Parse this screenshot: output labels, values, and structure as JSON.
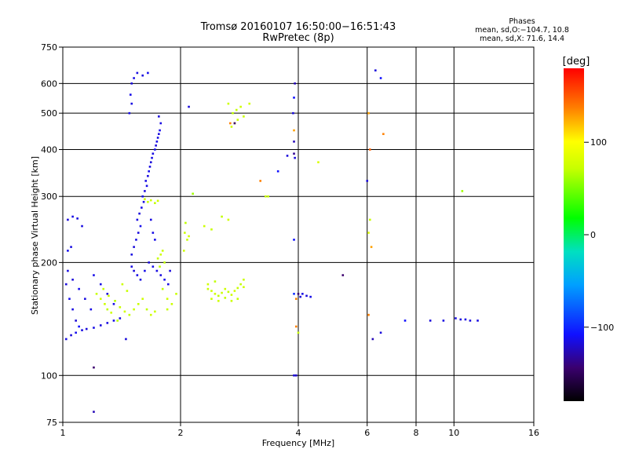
{
  "figure": {
    "title": "Tromsø 20160107 16:50:00−16:51:43",
    "subtitle": "RwPretec (8p)",
    "phase_title": "Phases",
    "phase_o": "mean, sd,O:−104.7, 10.8",
    "phase_x": "mean, sd,X:  71.6, 14.4",
    "colorbar_title": "[deg]",
    "colorbar_ticks": [
      "100",
      "0",
      "−100"
    ],
    "colorbar_tick_values": [
      100,
      0,
      -100
    ],
    "colorbar_range": [
      -180,
      180
    ]
  },
  "chart_data": {
    "type": "scatter",
    "xlabel": "Frequency [MHz]",
    "ylabel": "Stationary phase Virtual Height [km]",
    "x_scale": "log",
    "y_scale": "log",
    "xlim": [
      1,
      16
    ],
    "ylim": [
      75,
      750
    ],
    "x_ticks": [
      1,
      2,
      4,
      6,
      8,
      10,
      16
    ],
    "x_tick_labels": [
      "1",
      "2",
      "4",
      "6",
      "8",
      "10",
      "16"
    ],
    "y_ticks": [
      75,
      100,
      200,
      300,
      400,
      500,
      600,
      750
    ],
    "y_tick_labels": [
      "75",
      "100",
      "200",
      "300",
      "400",
      "500",
      "600",
      "750"
    ],
    "grid": true,
    "color_encoding": "phase [deg]",
    "points": [
      [
        1.02,
        175,
        -120
      ],
      [
        1.04,
        160,
        -115
      ],
      [
        1.06,
        150,
        -118
      ],
      [
        1.08,
        140,
        -122
      ],
      [
        1.1,
        135,
        -110
      ],
      [
        1.02,
        125,
        -118
      ],
      [
        1.05,
        128,
        -120
      ],
      [
        1.08,
        130,
        -115
      ],
      [
        1.12,
        132,
        -118
      ],
      [
        1.15,
        133,
        -120
      ],
      [
        1.2,
        134,
        -117
      ],
      [
        1.25,
        136,
        -119
      ],
      [
        1.3,
        138,
        -118
      ],
      [
        1.35,
        140,
        -116
      ],
      [
        1.4,
        142,
        -118
      ],
      [
        1.03,
        190,
        -118
      ],
      [
        1.06,
        180,
        -120
      ],
      [
        1.1,
        170,
        -115
      ],
      [
        1.14,
        160,
        -118
      ],
      [
        1.18,
        150,
        -117
      ],
      [
        1.03,
        215,
        -115
      ],
      [
        1.05,
        220,
        -118
      ],
      [
        1.03,
        260,
        -120
      ],
      [
        1.06,
        265,
        -117
      ],
      [
        1.09,
        262,
        -119
      ],
      [
        1.12,
        250,
        -118
      ],
      [
        1.2,
        185,
        -116
      ],
      [
        1.25,
        175,
        -118
      ],
      [
        1.3,
        165,
        -120
      ],
      [
        1.35,
        155,
        -117
      ],
      [
        1.22,
        165,
        70
      ],
      [
        1.25,
        160,
        75
      ],
      [
        1.28,
        155,
        72
      ],
      [
        1.3,
        150,
        68
      ],
      [
        1.33,
        147,
        74
      ],
      [
        1.27,
        170,
        70
      ],
      [
        1.31,
        163,
        73
      ],
      [
        1.36,
        158,
        66
      ],
      [
        1.4,
        152,
        71
      ],
      [
        1.44,
        148,
        75
      ],
      [
        1.48,
        145,
        69
      ],
      [
        1.52,
        150,
        72
      ],
      [
        1.56,
        155,
        70
      ],
      [
        1.6,
        160,
        73
      ],
      [
        1.64,
        150,
        68
      ],
      [
        1.68,
        145,
        74
      ],
      [
        1.72,
        148,
        71
      ],
      [
        1.42,
        175,
        72
      ],
      [
        1.46,
        168,
        70
      ],
      [
        1.38,
        140,
        66
      ],
      [
        1.5,
        210,
        -118
      ],
      [
        1.52,
        220,
        -120
      ],
      [
        1.54,
        230,
        -117
      ],
      [
        1.56,
        240,
        -119
      ],
      [
        1.58,
        250,
        -115
      ],
      [
        1.55,
        260,
        -118
      ],
      [
        1.57,
        270,
        -120
      ],
      [
        1.59,
        280,
        -117
      ],
      [
        1.61,
        290,
        -118
      ],
      [
        1.6,
        300,
        -116
      ],
      [
        1.62,
        310,
        -120
      ],
      [
        1.64,
        320,
        -117
      ],
      [
        1.63,
        330,
        -118
      ],
      [
        1.65,
        340,
        -119
      ],
      [
        1.66,
        350,
        -115
      ],
      [
        1.67,
        360,
        -118
      ],
      [
        1.68,
        370,
        -120
      ],
      [
        1.69,
        380,
        -117
      ],
      [
        1.7,
        390,
        -118
      ],
      [
        1.72,
        400,
        -116
      ],
      [
        1.73,
        410,
        -120
      ],
      [
        1.74,
        420,
        -117
      ],
      [
        1.75,
        430,
        -118
      ],
      [
        1.76,
        440,
        -119
      ],
      [
        1.77,
        450,
        -115
      ],
      [
        1.78,
        470,
        -118
      ],
      [
        1.76,
        490,
        -120
      ],
      [
        1.48,
        500,
        -117
      ],
      [
        1.5,
        530,
        -118
      ],
      [
        1.49,
        560,
        -116
      ],
      [
        1.5,
        600,
        -120
      ],
      [
        1.52,
        620,
        -117
      ],
      [
        1.55,
        640,
        -118
      ],
      [
        1.6,
        630,
        -119
      ],
      [
        1.65,
        640,
        -115
      ],
      [
        1.5,
        195,
        -118
      ],
      [
        1.52,
        190,
        -120
      ],
      [
        1.55,
        185,
        -117
      ],
      [
        1.58,
        180,
        -118
      ],
      [
        1.62,
        190,
        -116
      ],
      [
        1.66,
        200,
        -120
      ],
      [
        1.7,
        195,
        -117
      ],
      [
        1.74,
        190,
        -118
      ],
      [
        1.78,
        185,
        -119
      ],
      [
        1.82,
        180,
        -115
      ],
      [
        1.86,
        175,
        -118
      ],
      [
        1.88,
        190,
        -120
      ],
      [
        1.7,
        240,
        -117
      ],
      [
        1.68,
        260,
        -118
      ],
      [
        1.72,
        230,
        -116
      ],
      [
        1.65,
        290,
        70
      ],
      [
        1.68,
        293,
        74
      ],
      [
        1.72,
        288,
        68
      ],
      [
        1.75,
        292,
        72
      ],
      [
        1.62,
        295,
        75
      ],
      [
        1.75,
        205,
        70
      ],
      [
        1.78,
        210,
        73
      ],
      [
        1.82,
        200,
        68
      ],
      [
        1.8,
        215,
        72
      ],
      [
        1.77,
        195,
        69
      ],
      [
        1.85,
        150,
        70
      ],
      [
        1.9,
        155,
        72
      ],
      [
        1.85,
        160,
        74
      ],
      [
        1.8,
        170,
        68
      ],
      [
        1.95,
        165,
        71
      ],
      [
        2.05,
        240,
        72
      ],
      [
        2.08,
        230,
        70
      ],
      [
        2.1,
        235,
        75
      ],
      [
        2.06,
        255,
        68
      ],
      [
        2.04,
        215,
        73
      ],
      [
        2.15,
        305,
        60
      ],
      [
        2.3,
        250,
        72
      ],
      [
        2.4,
        245,
        70
      ],
      [
        2.55,
        265,
        68
      ],
      [
        2.65,
        260,
        74
      ],
      [
        2.35,
        170,
        70
      ],
      [
        2.4,
        168,
        72
      ],
      [
        2.45,
        165,
        74
      ],
      [
        2.5,
        163,
        68
      ],
      [
        2.55,
        166,
        71
      ],
      [
        2.6,
        170,
        73
      ],
      [
        2.65,
        167,
        69
      ],
      [
        2.7,
        164,
        72
      ],
      [
        2.75,
        168,
        75
      ],
      [
        2.8,
        171,
        70
      ],
      [
        2.85,
        175,
        68
      ],
      [
        2.9,
        172,
        74
      ],
      [
        2.4,
        160,
        71
      ],
      [
        2.5,
        158,
        73
      ],
      [
        2.6,
        161,
        69
      ],
      [
        2.7,
        158,
        72
      ],
      [
        2.8,
        160,
        70
      ],
      [
        2.35,
        175,
        73
      ],
      [
        2.45,
        178,
        68
      ],
      [
        2.9,
        180,
        71
      ],
      [
        2.7,
        460,
        72
      ],
      [
        2.75,
        470,
        74
      ],
      [
        2.8,
        480,
        70
      ],
      [
        2.72,
        500,
        68
      ],
      [
        2.85,
        520,
        73
      ],
      [
        2.9,
        490,
        71
      ],
      [
        2.78,
        510,
        69
      ],
      [
        2.68,
        470,
        140
      ],
      [
        2.75,
        470,
        -150
      ],
      [
        2.65,
        530,
        72
      ],
      [
        3.0,
        530,
        74
      ],
      [
        3.2,
        330,
        140
      ],
      [
        3.3,
        300,
        72
      ],
      [
        3.35,
        300,
        70
      ],
      [
        3.55,
        350,
        -110
      ],
      [
        3.75,
        385,
        -120
      ],
      [
        3.9,
        450,
        130
      ],
      [
        3.9,
        420,
        -130
      ],
      [
        3.9,
        390,
        -140
      ],
      [
        3.92,
        380,
        -120
      ],
      [
        3.88,
        500,
        -120
      ],
      [
        3.9,
        550,
        -110
      ],
      [
        3.92,
        600,
        -130
      ],
      [
        3.9,
        165,
        -100
      ],
      [
        3.95,
        160,
        140
      ],
      [
        4.0,
        165,
        -150
      ],
      [
        4.05,
        162,
        -120
      ],
      [
        4.1,
        165,
        -118
      ],
      [
        4.2,
        163,
        -120
      ],
      [
        4.3,
        162,
        -116
      ],
      [
        3.9,
        230,
        -110
      ],
      [
        3.95,
        135,
        140
      ],
      [
        4.0,
        130,
        70
      ],
      [
        3.9,
        100,
        -120
      ],
      [
        3.95,
        100,
        -125
      ],
      [
        4.5,
        370,
        80
      ],
      [
        5.2,
        185,
        -150
      ],
      [
        6.05,
        500,
        130
      ],
      [
        6.1,
        400,
        150
      ],
      [
        6.0,
        330,
        -120
      ],
      [
        6.1,
        260,
        70
      ],
      [
        6.05,
        240,
        80
      ],
      [
        6.15,
        220,
        130
      ],
      [
        6.05,
        145,
        140
      ],
      [
        6.2,
        125,
        -130
      ],
      [
        6.3,
        650,
        -120
      ],
      [
        6.5,
        620,
        -110
      ],
      [
        6.6,
        440,
        140
      ],
      [
        6.5,
        130,
        -120
      ],
      [
        7.5,
        140,
        -110
      ],
      [
        8.7,
        140,
        -120
      ],
      [
        9.4,
        140,
        -118
      ],
      [
        10.1,
        142,
        -118
      ],
      [
        10.4,
        141,
        -120
      ],
      [
        10.7,
        141,
        -117
      ],
      [
        11.0,
        140,
        -119
      ],
      [
        11.5,
        140,
        -118
      ],
      [
        10.5,
        310,
        60
      ],
      [
        2.1,
        520,
        -120
      ],
      [
        1.2,
        105,
        -150
      ],
      [
        1.2,
        80,
        -130
      ],
      [
        1.45,
        125,
        -120
      ]
    ]
  }
}
